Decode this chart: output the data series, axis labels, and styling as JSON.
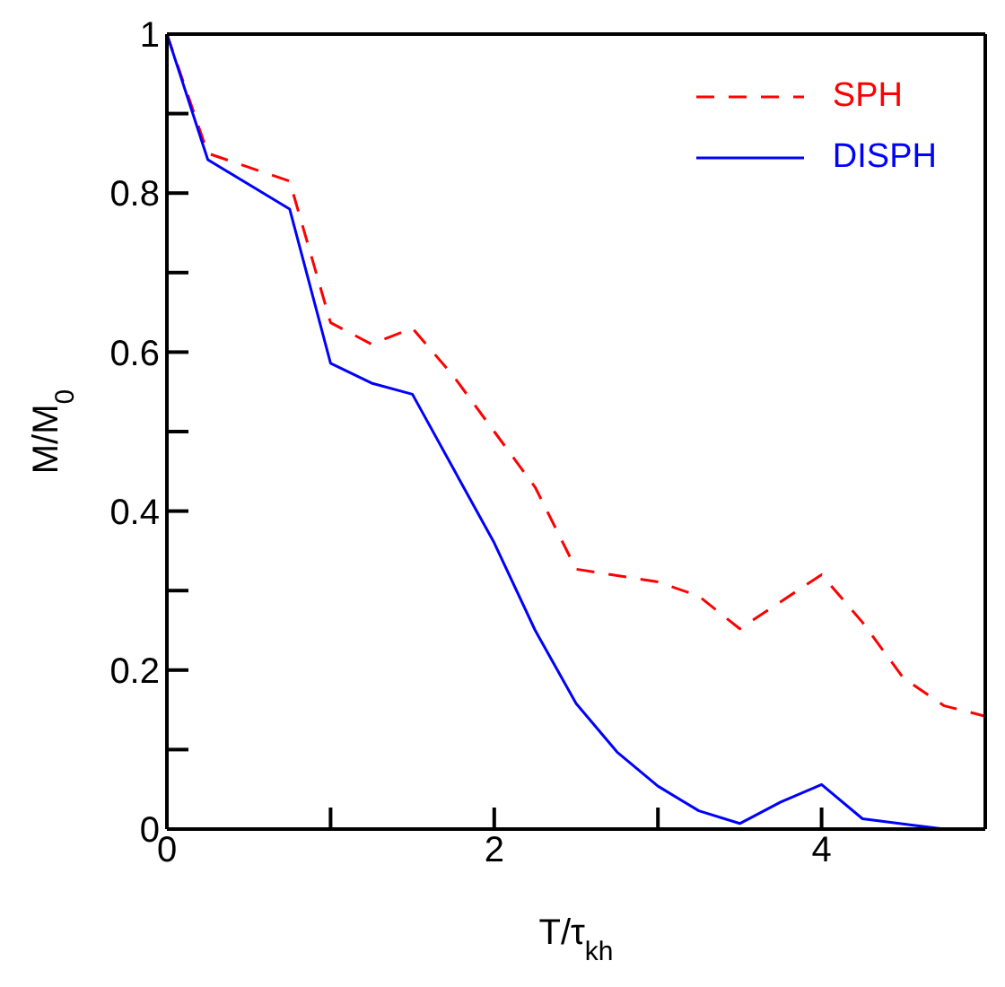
{
  "chart_data": {
    "type": "line",
    "xlabel": "T/τ$_{kh}$",
    "ylabel": "M/M$_{0}$",
    "xlim": [
      0,
      5
    ],
    "xticks": [
      0,
      {
        "value": 1,
        "label": null
      },
      2,
      {
        "value": 3,
        "label": null
      },
      4,
      {
        "value": 5,
        "label": null
      }
    ],
    "ylim": [
      0,
      1
    ],
    "yticks": [
      0,
      {
        "value": 0.1,
        "label": null
      },
      0.2,
      {
        "value": 0.3,
        "label": null
      },
      0.4,
      {
        "value": 0.5,
        "label": null
      },
      0.6,
      {
        "value": 0.7,
        "label": null
      },
      0.8,
      {
        "value": 0.9,
        "label": null
      },
      1
    ],
    "legend": "top right",
    "marker": "none",
    "series": [
      {
        "name": "SPH",
        "color": "#ff0000",
        "line_style": "dashed",
        "x": [
          0,
          0.25,
          0.75,
          1,
          1.25,
          1.5,
          1.75,
          2,
          2.25,
          2.5,
          3,
          3.25,
          3.5,
          4,
          4.25,
          4.5,
          4.75,
          5
        ],
        "values": [
          1,
          0.85,
          0.815,
          0.637,
          0.61,
          0.63,
          0.57,
          0.5,
          0.43,
          0.327,
          0.311,
          0.293,
          0.252,
          0.32,
          0.26,
          0.19,
          0.155,
          0.142
        ]
      },
      {
        "name": "DISPH",
        "color": "#0000ff",
        "line_style": "solid",
        "x": [
          0,
          0.25,
          0.75,
          1,
          1.25,
          1.5,
          2,
          2.25,
          2.5,
          2.75,
          3,
          3.25,
          3.5,
          3.75,
          4,
          4.25,
          4.75,
          5
        ],
        "values": [
          1,
          0.842,
          0.78,
          0.586,
          0.561,
          0.547,
          0.36,
          0.25,
          0.158,
          0.097,
          0.054,
          0.023,
          0.007,
          0.034,
          0.056,
          0.013,
          0,
          0
        ]
      }
    ]
  }
}
